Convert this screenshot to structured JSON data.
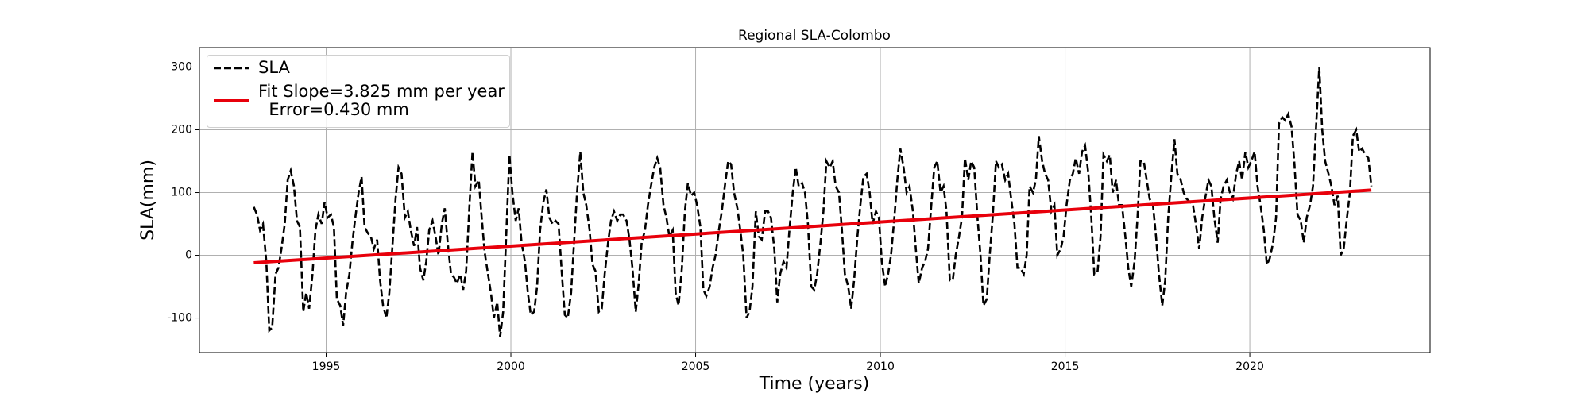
{
  "chart_data": {
    "type": "line",
    "title": "Regional SLA-Colombo",
    "xlabel": "Time (years)",
    "ylabel": "SLA(mm)",
    "xlim": [
      1991.57,
      2024.88
    ],
    "ylim": [
      -155,
      331
    ],
    "xticks": [
      1995,
      2000,
      2005,
      2010,
      2015,
      2020
    ],
    "yticks": [
      -100,
      0,
      100,
      200,
      300
    ],
    "grid": true,
    "legend": "upper left",
    "series": [
      {
        "name": "SLA",
        "color": "#000000",
        "style": "dashed",
        "x": [
          1993.04,
          1993.13,
          1993.21,
          1993.29,
          1993.38,
          1993.46,
          1993.54,
          1993.63,
          1993.71,
          1993.79,
          1993.88,
          1993.96,
          1994.04,
          1994.13,
          1994.21,
          1994.29,
          1994.38,
          1994.46,
          1994.54,
          1994.63,
          1994.71,
          1994.79,
          1994.88,
          1994.96,
          1995.04,
          1995.13,
          1995.21,
          1995.29,
          1995.38,
          1995.46,
          1995.54,
          1995.63,
          1995.71,
          1995.79,
          1995.88,
          1995.96,
          1996.04,
          1996.13,
          1996.21,
          1996.29,
          1996.38,
          1996.46,
          1996.54,
          1996.63,
          1996.71,
          1996.79,
          1996.88,
          1996.96,
          1997.04,
          1997.13,
          1997.21,
          1997.29,
          1997.38,
          1997.46,
          1997.54,
          1997.63,
          1997.71,
          1997.79,
          1997.88,
          1997.96,
          1998.04,
          1998.13,
          1998.21,
          1998.29,
          1998.38,
          1998.46,
          1998.54,
          1998.63,
          1998.71,
          1998.79,
          1998.88,
          1998.96,
          1999.04,
          1999.13,
          1999.21,
          1999.29,
          1999.38,
          1999.46,
          1999.54,
          1999.63,
          1999.71,
          1999.79,
          1999.88,
          1999.96,
          2000.04,
          2000.13,
          2000.21,
          2000.29,
          2000.38,
          2000.46,
          2000.54,
          2000.63,
          2000.71,
          2000.79,
          2000.88,
          2000.96,
          2001.04,
          2001.13,
          2001.21,
          2001.29,
          2001.38,
          2001.46,
          2001.54,
          2001.63,
          2001.71,
          2001.79,
          2001.88,
          2001.96,
          2002.04,
          2002.13,
          2002.21,
          2002.29,
          2002.38,
          2002.46,
          2002.54,
          2002.63,
          2002.71,
          2002.79,
          2002.88,
          2002.96,
          2003.04,
          2003.13,
          2003.21,
          2003.29,
          2003.38,
          2003.46,
          2003.54,
          2003.63,
          2003.71,
          2003.79,
          2003.88,
          2003.96,
          2004.04,
          2004.13,
          2004.21,
          2004.29,
          2004.38,
          2004.46,
          2004.54,
          2004.63,
          2004.71,
          2004.79,
          2004.88,
          2004.96,
          2005.04,
          2005.13,
          2005.21,
          2005.29,
          2005.38,
          2005.46,
          2005.54,
          2005.63,
          2005.71,
          2005.79,
          2005.88,
          2005.96,
          2006.04,
          2006.13,
          2006.21,
          2006.29,
          2006.38,
          2006.46,
          2006.54,
          2006.63,
          2006.71,
          2006.79,
          2006.88,
          2006.96,
          2007.04,
          2007.13,
          2007.21,
          2007.29,
          2007.38,
          2007.46,
          2007.54,
          2007.63,
          2007.71,
          2007.79,
          2007.88,
          2007.96,
          2008.04,
          2008.13,
          2008.21,
          2008.29,
          2008.38,
          2008.46,
          2008.54,
          2008.63,
          2008.71,
          2008.79,
          2008.88,
          2008.96,
          2009.04,
          2009.13,
          2009.21,
          2009.29,
          2009.38,
          2009.46,
          2009.54,
          2009.63,
          2009.71,
          2009.79,
          2009.88,
          2009.96,
          2010.04,
          2010.13,
          2010.21,
          2010.29,
          2010.38,
          2010.46,
          2010.54,
          2010.63,
          2010.71,
          2010.79,
          2010.88,
          2010.96,
          2011.04,
          2011.13,
          2011.21,
          2011.29,
          2011.38,
          2011.46,
          2011.54,
          2011.63,
          2011.71,
          2011.79,
          2011.88,
          2011.96,
          2012.04,
          2012.13,
          2012.21,
          2012.29,
          2012.38,
          2012.46,
          2012.54,
          2012.63,
          2012.71,
          2012.79,
          2012.88,
          2012.96,
          2013.04,
          2013.13,
          2013.21,
          2013.29,
          2013.38,
          2013.46,
          2013.54,
          2013.63,
          2013.71,
          2013.79,
          2013.88,
          2013.96,
          2014.04,
          2014.13,
          2014.21,
          2014.29,
          2014.38,
          2014.46,
          2014.54,
          2014.63,
          2014.71,
          2014.79,
          2014.88,
          2014.96,
          2015.04,
          2015.13,
          2015.21,
          2015.29,
          2015.38,
          2015.46,
          2015.54,
          2015.63,
          2015.71,
          2015.79,
          2015.88,
          2015.96,
          2016.04,
          2016.13,
          2016.21,
          2016.29,
          2016.38,
          2016.46,
          2016.54,
          2016.63,
          2016.71,
          2016.79,
          2016.88,
          2016.96,
          2017.04,
          2017.13,
          2017.21,
          2017.29,
          2017.38,
          2017.46,
          2017.54,
          2017.63,
          2017.71,
          2017.79,
          2017.88,
          2017.96,
          2018.04,
          2018.13,
          2018.21,
          2018.29,
          2018.38,
          2018.46,
          2018.54,
          2018.63,
          2018.71,
          2018.79,
          2018.88,
          2018.96,
          2019.04,
          2019.13,
          2019.21,
          2019.29,
          2019.38,
          2019.46,
          2019.54,
          2019.63,
          2019.71,
          2019.79,
          2019.88,
          2019.96,
          2020.04,
          2020.13,
          2020.21,
          2020.29,
          2020.38,
          2020.46,
          2020.54,
          2020.63,
          2020.71,
          2020.79,
          2020.88,
          2020.96,
          2021.04,
          2021.13,
          2021.21,
          2021.29,
          2021.38,
          2021.46,
          2021.54,
          2021.63,
          2021.71,
          2021.79,
          2021.88,
          2021.96,
          2022.04,
          2022.13,
          2022.21,
          2022.29,
          2022.38,
          2022.46,
          2022.54,
          2022.63,
          2022.71,
          2022.79,
          2022.88,
          2022.96,
          2023.04,
          2023.13,
          2023.21,
          2023.29
        ],
        "values": [
          77,
          65,
          40,
          50,
          -10,
          -120,
          -115,
          -30,
          -20,
          10,
          50,
          120,
          135,
          110,
          55,
          45,
          -90,
          -60,
          -85,
          -30,
          40,
          65,
          50,
          85,
          60,
          65,
          45,
          -70,
          -80,
          -112,
          -60,
          -30,
          20,
          60,
          100,
          125,
          45,
          35,
          30,
          10,
          25,
          -40,
          -80,
          -100,
          -60,
          10,
          90,
          140,
          130,
          60,
          70,
          40,
          15,
          45,
          -20,
          -40,
          -10,
          40,
          55,
          30,
          0,
          50,
          75,
          20,
          -30,
          -35,
          -45,
          -30,
          -55,
          -25,
          80,
          165,
          110,
          120,
          60,
          5,
          -30,
          -60,
          -100,
          -75,
          -130,
          -90,
          40,
          160,
          100,
          55,
          75,
          20,
          -10,
          -60,
          -95,
          -90,
          -50,
          40,
          85,
          105,
          60,
          50,
          55,
          50,
          -30,
          -95,
          -100,
          -60,
          20,
          100,
          165,
          100,
          80,
          40,
          -15,
          -25,
          -90,
          -85,
          -30,
          20,
          55,
          70,
          55,
          65,
          65,
          55,
          25,
          -20,
          -90,
          -45,
          20,
          40,
          80,
          110,
          140,
          155,
          140,
          80,
          60,
          30,
          40,
          -60,
          -80,
          -20,
          70,
          115,
          95,
          100,
          80,
          45,
          -55,
          -65,
          -50,
          -20,
          0,
          40,
          70,
          110,
          150,
          145,
          100,
          75,
          40,
          0,
          -100,
          -90,
          -50,
          70,
          30,
          25,
          70,
          70,
          60,
          10,
          -75,
          -30,
          -10,
          -20,
          40,
          100,
          140,
          110,
          115,
          100,
          50,
          -50,
          -55,
          -30,
          20,
          70,
          150,
          140,
          150,
          110,
          100,
          40,
          -30,
          -50,
          -85,
          -40,
          30,
          80,
          125,
          130,
          100,
          50,
          70,
          60,
          -10,
          -50,
          -30,
          0,
          60,
          120,
          170,
          140,
          100,
          110,
          70,
          10,
          -45,
          -20,
          -10,
          10,
          80,
          140,
          150,
          100,
          110,
          70,
          -40,
          -40,
          0,
          30,
          60,
          155,
          120,
          150,
          140,
          60,
          0,
          -80,
          -70,
          0,
          60,
          150,
          140,
          145,
          120,
          130,
          90,
          50,
          -20,
          -20,
          -30,
          0,
          110,
          100,
          120,
          190,
          150,
          130,
          120,
          70,
          80,
          0,
          10,
          30,
          80,
          120,
          130,
          155,
          130,
          165,
          175,
          130,
          60,
          -30,
          -25,
          30,
          160,
          150,
          160,
          100,
          120,
          80,
          80,
          30,
          -20,
          -50,
          -10,
          60,
          150,
          150,
          120,
          90,
          80,
          30,
          -30,
          -80,
          -40,
          60,
          130,
          185,
          130,
          120,
          100,
          90,
          85,
          80,
          50,
          10,
          60,
          90,
          120,
          110,
          60,
          20,
          90,
          110,
          120,
          100,
          90,
          130,
          150,
          120,
          165,
          140,
          150,
          165,
          110,
          80,
          40,
          -15,
          -5,
          20,
          60,
          210,
          220,
          215,
          225,
          205,
          145,
          65,
          55,
          20,
          60,
          80,
          110,
          200,
          300,
          200,
          150,
          130,
          110,
          80,
          95,
          0,
          10,
          60,
          100,
          190,
          200,
          165,
          170,
          160,
          155,
          110
        ]
      },
      {
        "name": "Fit Slope=3.825 mm per year\n  Error=0.430 mm",
        "color": "#e8000b",
        "style": "solid",
        "x": [
          1993.04,
          2023.29
        ],
        "values": [
          -12,
          104
        ]
      }
    ]
  }
}
